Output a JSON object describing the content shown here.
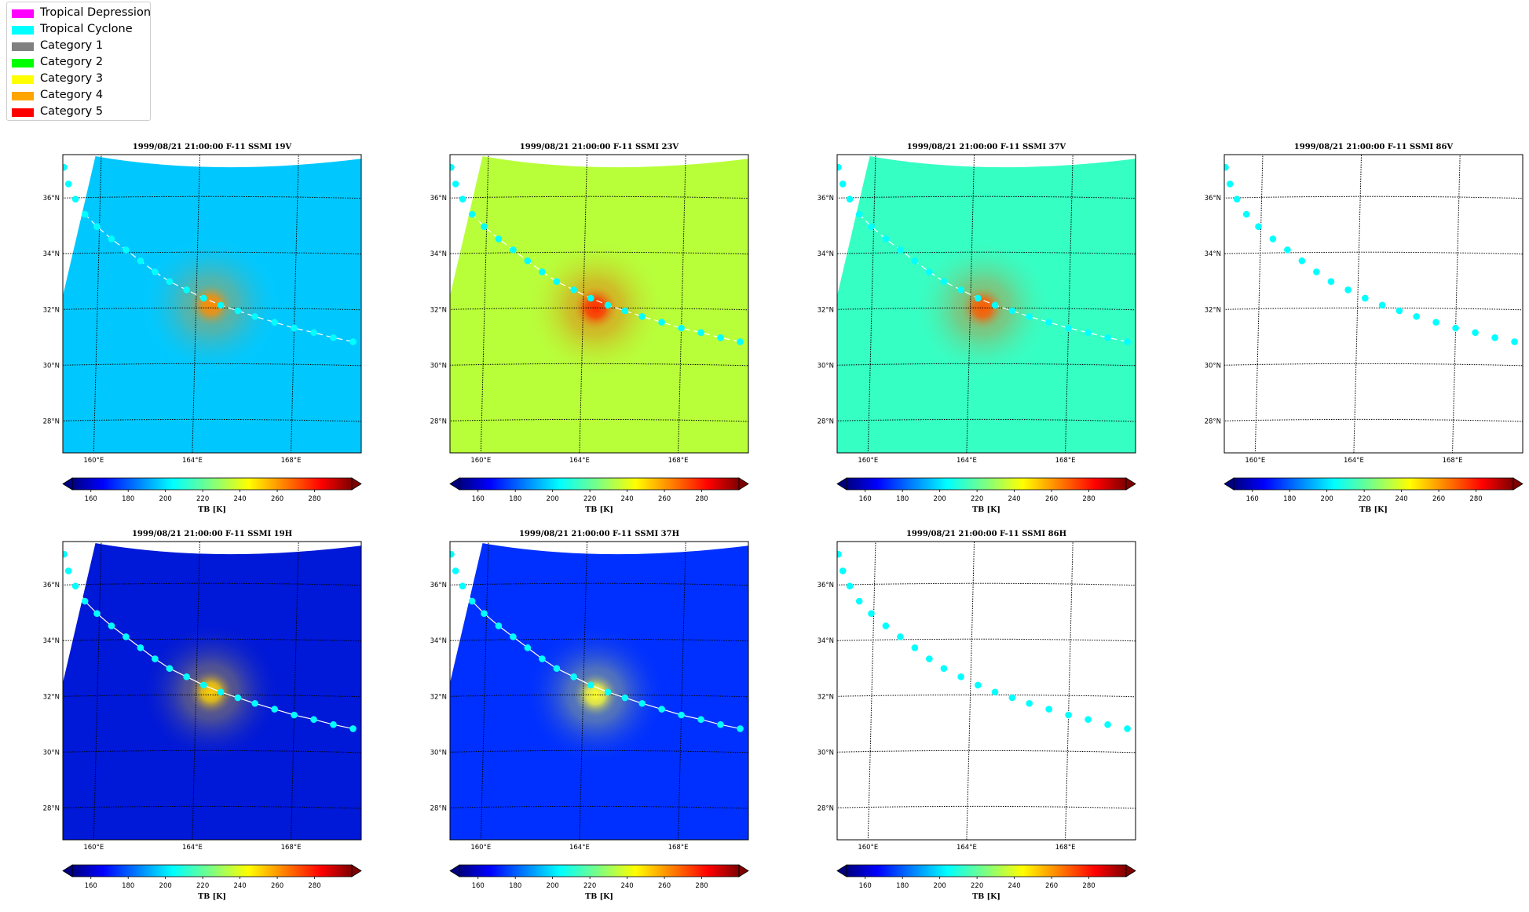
{
  "legend": {
    "items": [
      {
        "label": "Tropical Depression",
        "color": "#ff00ff"
      },
      {
        "label": "Tropical Cyclone",
        "color": "#00ffff"
      },
      {
        "label": "Category 1",
        "color": "#808080"
      },
      {
        "label": "Category 2",
        "color": "#00ff00"
      },
      {
        "label": "Category 3",
        "color": "#ffff00"
      },
      {
        "label": "Category 4",
        "color": "#ffa500"
      },
      {
        "label": "Category 5",
        "color": "#ff0000"
      }
    ]
  },
  "map": {
    "lat_ticks": [
      {
        "value": 28,
        "label": "28°N"
      },
      {
        "value": 30,
        "label": "30°N"
      },
      {
        "value": 32,
        "label": "32°N"
      },
      {
        "value": 34,
        "label": "34°N"
      },
      {
        "value": 36,
        "label": "36°N"
      }
    ],
    "lon_ticks": [
      {
        "value": 160,
        "label": "160°E"
      },
      {
        "value": 164,
        "label": "164°E"
      },
      {
        "value": 168,
        "label": "168°E"
      }
    ],
    "lon_range": [
      158.6,
      170.7
    ],
    "lat_range": [
      26.8,
      37.5
    ],
    "track": {
      "color": "#00ffff",
      "points": [
        [
          158.5,
          37.1
        ],
        [
          158.7,
          36.5
        ],
        [
          159.0,
          35.95
        ],
        [
          159.4,
          35.4
        ],
        [
          159.9,
          34.95
        ],
        [
          160.5,
          34.5
        ],
        [
          161.1,
          34.1
        ],
        [
          161.7,
          33.7
        ],
        [
          162.3,
          33.3
        ],
        [
          162.9,
          32.95
        ],
        [
          163.6,
          32.65
        ],
        [
          164.3,
          32.35
        ],
        [
          165.0,
          32.1
        ],
        [
          165.7,
          31.9
        ],
        [
          166.4,
          31.7
        ],
        [
          167.2,
          31.5
        ],
        [
          168.0,
          31.3
        ],
        [
          168.8,
          31.15
        ],
        [
          169.6,
          30.98
        ],
        [
          170.4,
          30.85
        ]
      ]
    }
  },
  "colorbar": {
    "label": "TB [K]",
    "range": [
      150,
      300
    ],
    "ticks": [
      160,
      180,
      200,
      220,
      240,
      260,
      280
    ],
    "colormap": "jet"
  },
  "panels": [
    {
      "title": "1999/08/21 21:00:00  F-11 SSMI 19V",
      "background": "#00c8ff",
      "storm_center": [
        164.6,
        32.1
      ],
      "storm_peak": "#ff8c00",
      "has_data": true,
      "track_line": "dashed"
    },
    {
      "title": "1999/08/21 21:00:00  F-11 SSMI 23V",
      "background": "#b8ff3a",
      "storm_center": [
        164.5,
        32.0
      ],
      "storm_peak": "#ff3000",
      "has_data": true,
      "track_line": "dashed"
    },
    {
      "title": "1999/08/21 21:00:00  F-11 SSMI 37V",
      "background": "#36ffc4",
      "storm_center": [
        164.5,
        32.0
      ],
      "storm_peak": "#ff5a00",
      "has_data": true,
      "track_line": "dashed"
    },
    {
      "title": "1999/08/21 21:00:00  F-11 SSMI 86V",
      "has_data": false
    },
    {
      "title": "1999/08/21 21:00:00  F-11 SSMI 19H",
      "background": "#0018d8",
      "storm_center": [
        164.6,
        32.1
      ],
      "storm_peak": "#ffd000",
      "has_data": true,
      "track_line": "solid"
    },
    {
      "title": "1999/08/21 21:00:00  F-11 SSMI 37H",
      "background": "#0030ff",
      "storm_center": [
        164.5,
        32.0
      ],
      "storm_peak": "#ffff30",
      "has_data": true,
      "track_line": "solid"
    },
    {
      "title": "1999/08/21 21:00:00  F-11 SSMI 86H",
      "has_data": false
    }
  ]
}
